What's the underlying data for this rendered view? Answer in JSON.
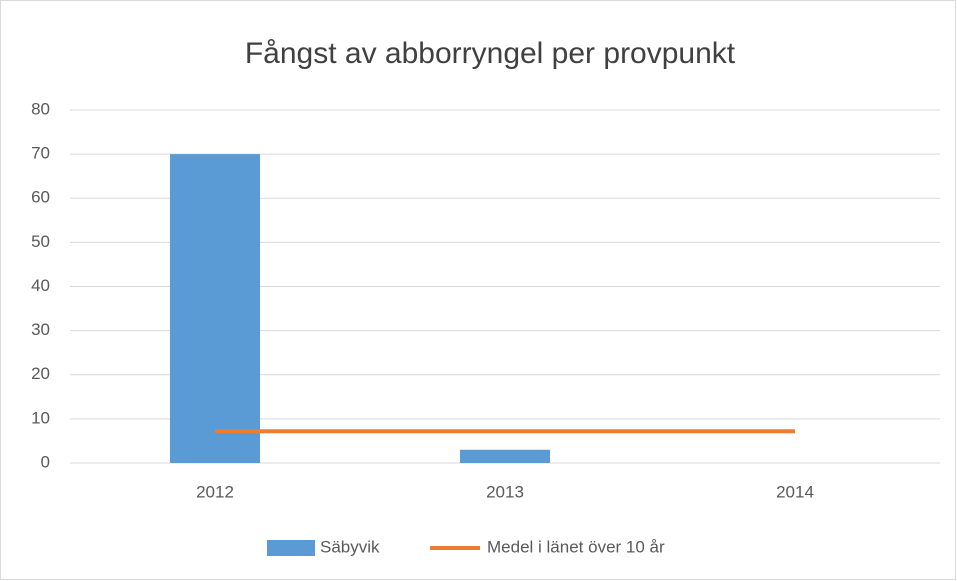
{
  "chart_data": {
    "type": "combo",
    "title": "Fångst av abborryngel per provpunkt",
    "categories": [
      "2012",
      "2013",
      "2014"
    ],
    "series": [
      {
        "name": "Säbyvik",
        "type": "bar",
        "color": "#5b9bd5",
        "values": [
          70,
          3,
          null
        ]
      },
      {
        "name": "Medel i länet över 10 år",
        "type": "line",
        "color": "#ed7d31",
        "values": [
          7.2,
          7.2,
          7.2
        ]
      }
    ],
    "ylim": [
      0,
      80
    ],
    "yticks": [
      0,
      10,
      20,
      30,
      40,
      50,
      60,
      70,
      80
    ],
    "grid": true
  }
}
